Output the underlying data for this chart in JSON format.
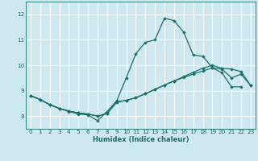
{
  "xlabel": "Humidex (Indice chaleur)",
  "bg_color": "#cde8ef",
  "grid_color": "#ffffff",
  "line_color": "#1a7068",
  "xlim": [
    -0.5,
    23.5
  ],
  "ylim": [
    7.5,
    12.5
  ],
  "xticks": [
    0,
    1,
    2,
    3,
    4,
    5,
    6,
    7,
    8,
    9,
    10,
    11,
    12,
    13,
    14,
    15,
    16,
    17,
    18,
    19,
    20,
    21,
    22,
    23
  ],
  "yticks": [
    8,
    9,
    10,
    11,
    12
  ],
  "series": [
    {
      "x": [
        0,
        1,
        2,
        3,
        4,
        5,
        6,
        7,
        8,
        9,
        10,
        11,
        12,
        13,
        14,
        15,
        16,
        17,
        18,
        19,
        20,
        21,
        22
      ],
      "y": [
        8.8,
        8.65,
        8.45,
        8.3,
        8.18,
        8.08,
        8.05,
        7.82,
        8.18,
        8.6,
        9.5,
        10.45,
        10.9,
        11.0,
        11.85,
        11.75,
        11.3,
        10.4,
        10.35,
        9.9,
        9.7,
        9.15,
        9.15
      ]
    },
    {
      "x": [
        0,
        1,
        2,
        3,
        4,
        5,
        6,
        7,
        8,
        9,
        10,
        11,
        12,
        13,
        14,
        15,
        16,
        17,
        18,
        19,
        20,
        21,
        22,
        23
      ],
      "y": [
        8.8,
        8.65,
        8.45,
        8.3,
        8.2,
        8.12,
        8.08,
        8.0,
        8.1,
        8.55,
        8.62,
        8.72,
        8.88,
        9.05,
        9.22,
        9.38,
        9.52,
        9.65,
        9.77,
        9.9,
        9.85,
        9.5,
        9.65,
        9.2
      ]
    },
    {
      "x": [
        0,
        1,
        2,
        3,
        4,
        5,
        6,
        7,
        8,
        9,
        10,
        11,
        12,
        13,
        14,
        15,
        16,
        17,
        18,
        19,
        20,
        21,
        22,
        23
      ],
      "y": [
        8.8,
        8.65,
        8.45,
        8.3,
        8.2,
        8.12,
        8.08,
        8.0,
        8.1,
        8.55,
        8.62,
        8.72,
        8.88,
        9.05,
        9.22,
        9.38,
        9.55,
        9.72,
        9.88,
        10.0,
        9.88,
        9.85,
        9.75,
        9.2
      ]
    }
  ]
}
